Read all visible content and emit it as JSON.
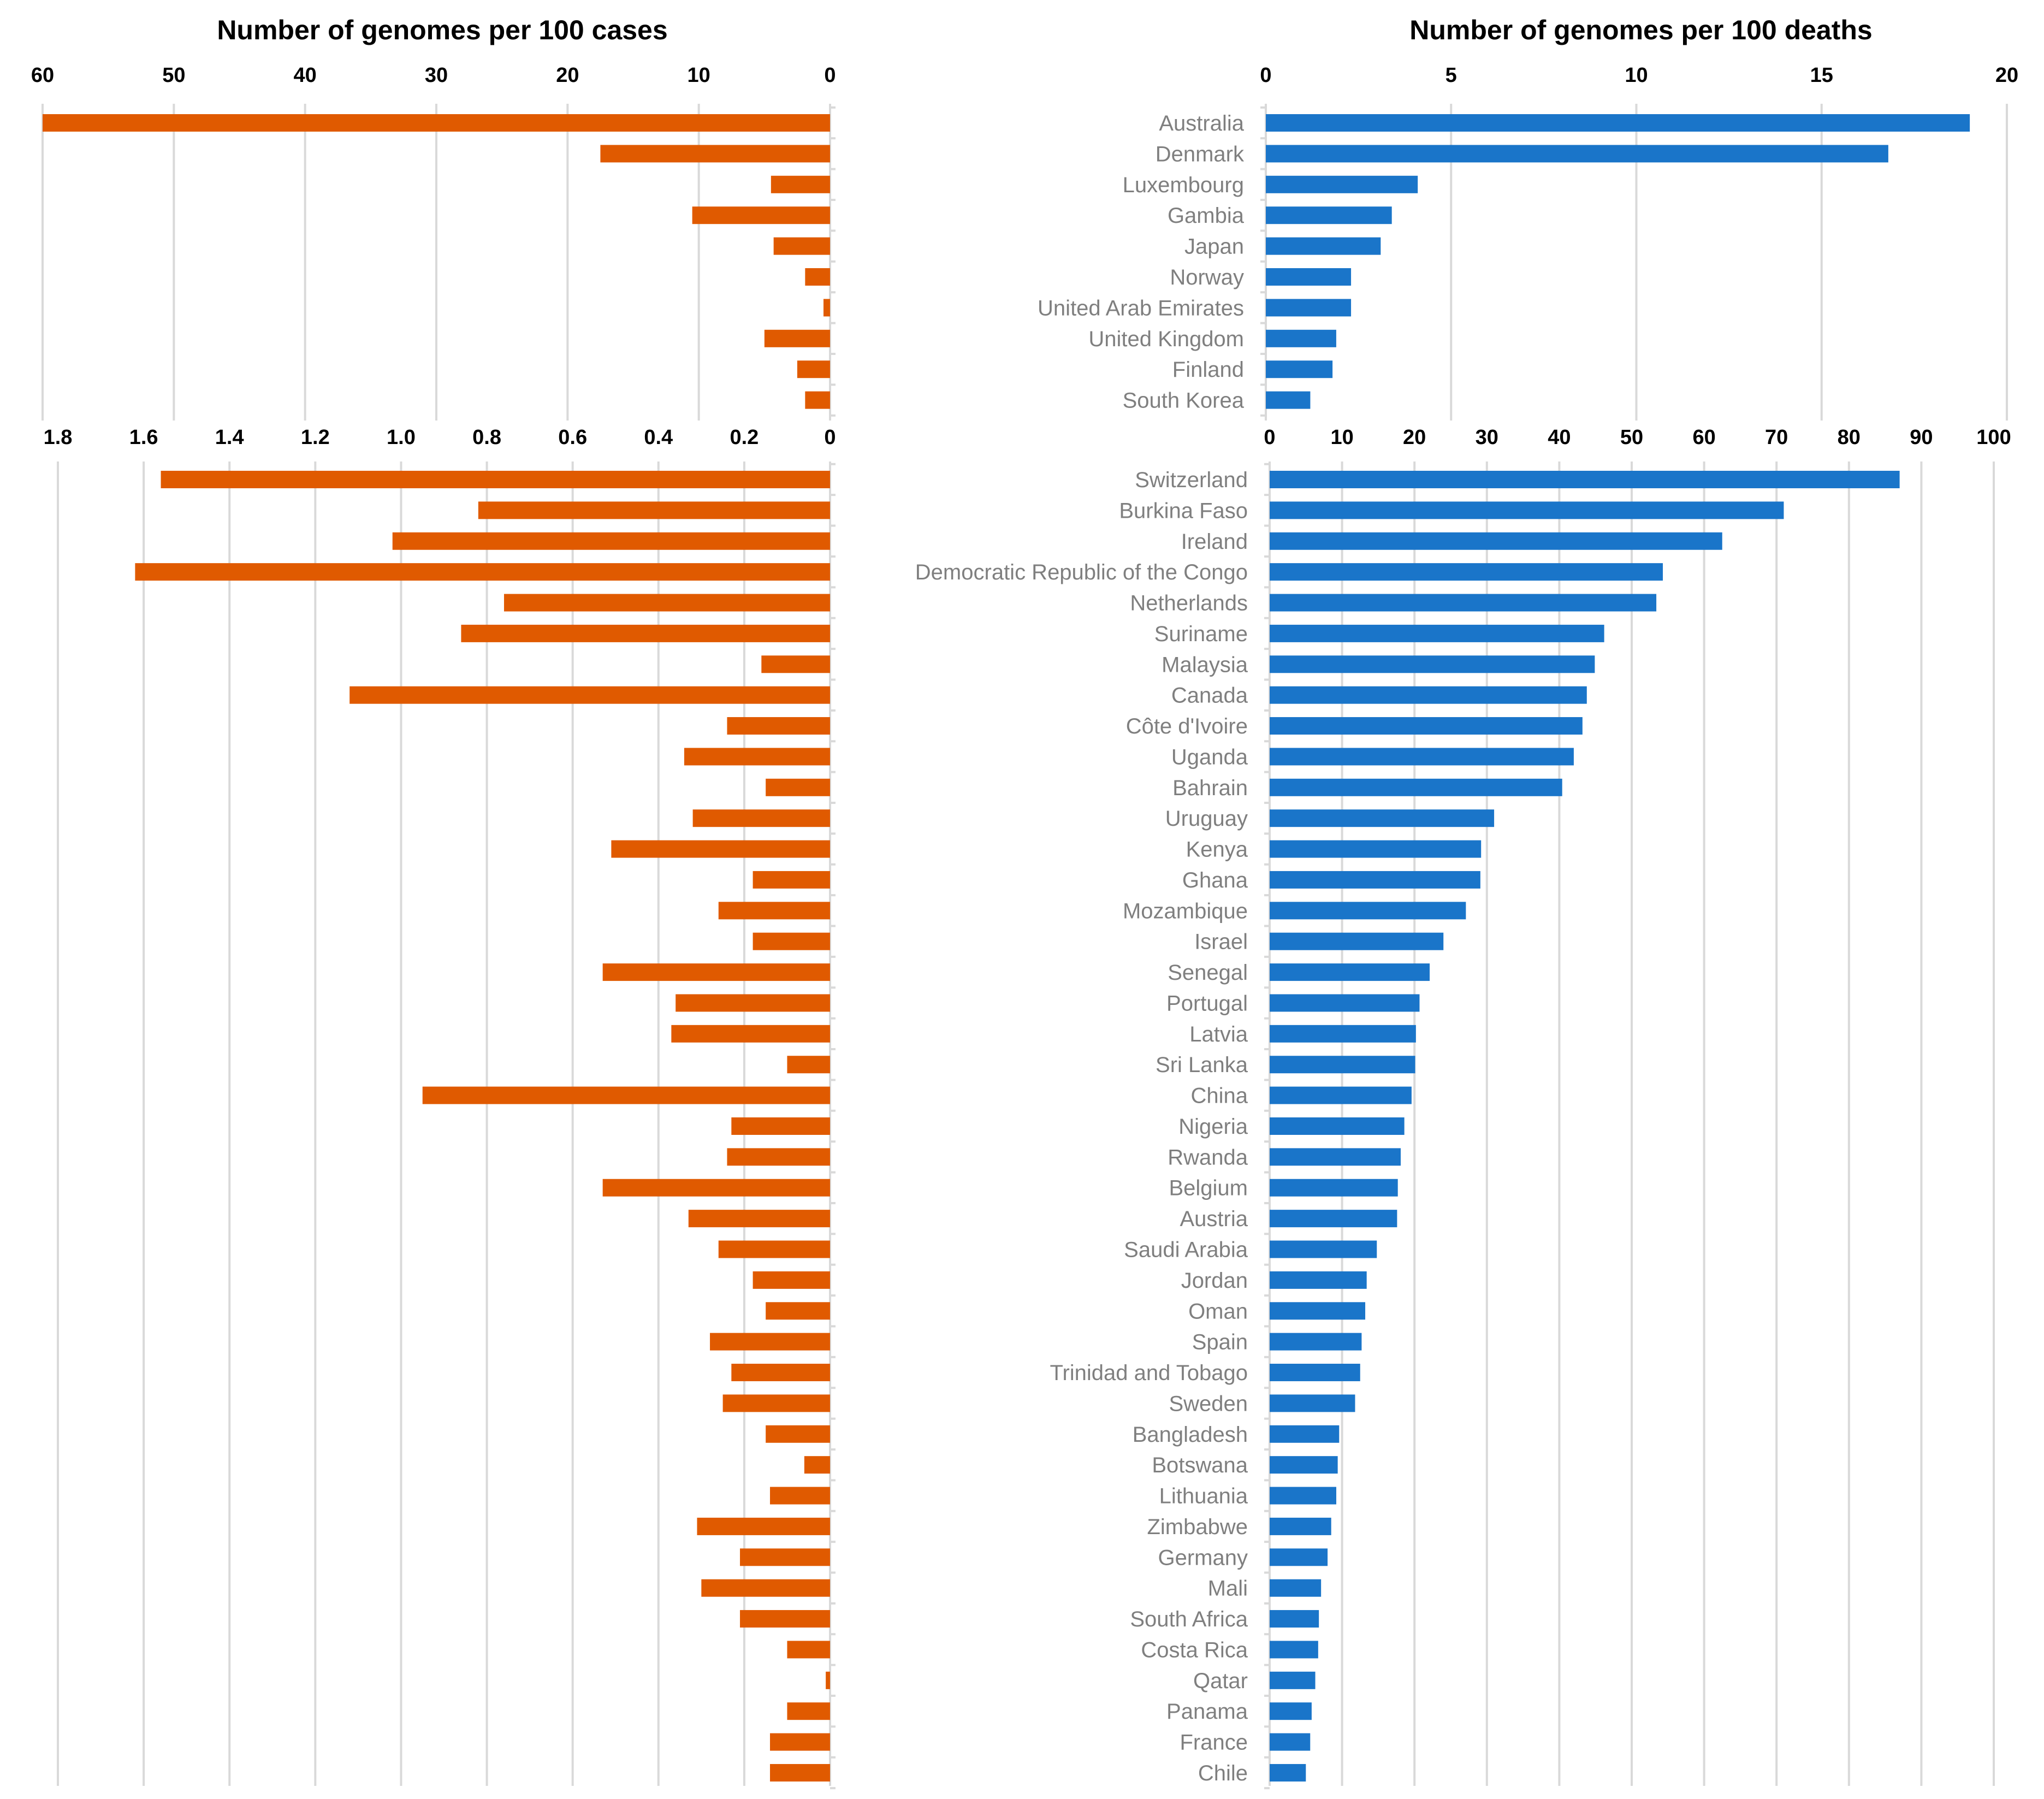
{
  "chart_data": [
    {
      "id": "cases-top",
      "type": "bar",
      "orientation": "horizontal-reversed",
      "title": "Number of genomes per 100 cases",
      "xlim": [
        0,
        60
      ],
      "ticks": [
        0,
        10,
        20,
        30,
        40,
        50,
        60
      ],
      "tick_labels": [
        "0",
        "10",
        "20",
        "30",
        "40",
        "50",
        "60"
      ],
      "categories": [
        "Australia",
        "Denmark",
        "Luxembourg",
        "Gambia",
        "Japan",
        "Norway",
        "United Arab Emirates",
        "United Kingdom",
        "Finland",
        "South Korea"
      ],
      "values": [
        60,
        17.5,
        4.5,
        10.5,
        4.3,
        1.9,
        0.5,
        5.0,
        2.5,
        1.9
      ],
      "color": "#e05a00"
    },
    {
      "id": "deaths-top",
      "type": "bar",
      "orientation": "horizontal",
      "title": "Number of genomes per 100 deaths",
      "xlim": [
        0,
        20
      ],
      "ticks": [
        0,
        5,
        10,
        15,
        20
      ],
      "tick_labels": [
        "0",
        "5",
        "10",
        "15",
        "20"
      ],
      "categories": [
        "Australia",
        "Denmark",
        "Luxembourg",
        "Gambia",
        "Japan",
        "Norway",
        "United Arab Emirates",
        "United Kingdom",
        "Finland",
        "South Korea"
      ],
      "values": [
        19.0,
        16.8,
        4.1,
        3.4,
        3.1,
        2.3,
        2.3,
        1.9,
        1.8,
        1.2
      ],
      "color": "#1a75c9"
    },
    {
      "id": "cases-bottom",
      "type": "bar",
      "orientation": "horizontal-reversed",
      "xlim": [
        0,
        1.8
      ],
      "ticks": [
        0,
        0.2,
        0.4,
        0.6,
        0.8,
        1.0,
        1.2,
        1.4,
        1.6,
        1.8
      ],
      "tick_labels": [
        "0",
        "0.2",
        "0.4",
        "0.6",
        "0.8",
        "1.0",
        "1.2",
        "1.4",
        "1.6",
        "1.8"
      ],
      "categories": [
        "Switzerland",
        "Burkina Faso",
        "Ireland",
        "Democratic Republic of the Congo",
        "Netherlands",
        "Suriname",
        "Malaysia",
        "Canada",
        "Côte d'Ivoire",
        "Uganda",
        "Bahrain",
        "Uruguay",
        "Kenya",
        "Ghana",
        "Mozambique",
        "Israel",
        "Senegal",
        "Portugal",
        "Latvia",
        "Sri Lanka",
        "China",
        "Nigeria",
        "Rwanda",
        "Belgium",
        "Austria",
        "Saudi Arabia",
        "Jordan",
        "Oman",
        "Spain",
        "Trinidad and Tobago",
        "Sweden",
        "Bangladesh",
        "Botswana",
        "Lithuania",
        "Zimbabwe",
        "Germany",
        "Mali",
        "South Africa",
        "Costa Rica",
        "Qatar",
        "Panama",
        "France",
        "Chile"
      ],
      "values": [
        1.56,
        0.82,
        1.02,
        1.62,
        0.76,
        0.86,
        0.16,
        1.12,
        0.24,
        0.34,
        0.15,
        0.32,
        0.51,
        0.18,
        0.26,
        0.18,
        0.53,
        0.36,
        0.37,
        0.1,
        0.95,
        0.23,
        0.24,
        0.53,
        0.33,
        0.26,
        0.18,
        0.15,
        0.28,
        0.23,
        0.25,
        0.15,
        0.06,
        0.14,
        0.31,
        0.21,
        0.3,
        0.21,
        0.1,
        0.01,
        0.1,
        0.14,
        0.14
      ],
      "color": "#e05a00"
    },
    {
      "id": "deaths-bottom",
      "type": "bar",
      "orientation": "horizontal",
      "xlim": [
        0,
        100
      ],
      "ticks": [
        0,
        10,
        20,
        30,
        40,
        50,
        60,
        70,
        80,
        90,
        100
      ],
      "tick_labels": [
        "0",
        "10",
        "20",
        "30",
        "40",
        "50",
        "60",
        "70",
        "80",
        "90",
        "100"
      ],
      "categories": [
        "Switzerland",
        "Burkina Faso",
        "Ireland",
        "Democratic Republic of the Congo",
        "Netherlands",
        "Suriname",
        "Malaysia",
        "Canada",
        "Côte d'Ivoire",
        "Uganda",
        "Bahrain",
        "Uruguay",
        "Kenya",
        "Ghana",
        "Mozambique",
        "Israel",
        "Senegal",
        "Portugal",
        "Latvia",
        "Sri Lanka",
        "China",
        "Nigeria",
        "Rwanda",
        "Belgium",
        "Austria",
        "Saudi Arabia",
        "Jordan",
        "Oman",
        "Spain",
        "Trinidad and Tobago",
        "Sweden",
        "Bangladesh",
        "Botswana",
        "Lithuania",
        "Zimbabwe",
        "Germany",
        "Mali",
        "South Africa",
        "Costa Rica",
        "Qatar",
        "Panama",
        "France",
        "Chile"
      ],
      "values": [
        87,
        71,
        62.5,
        54.3,
        53.4,
        46.2,
        44.9,
        43.8,
        43.2,
        42,
        40.4,
        31,
        29.2,
        29.1,
        27.1,
        24,
        22.1,
        20.7,
        20.2,
        20.1,
        19.6,
        18.6,
        18.1,
        17.7,
        17.6,
        14.8,
        13.4,
        13.2,
        12.7,
        12.5,
        11.8,
        9.6,
        9.4,
        9.2,
        8.5,
        8,
        7.1,
        6.8,
        6.7,
        6.3,
        5.8,
        5.6,
        5
      ],
      "color": "#1a75c9"
    }
  ]
}
